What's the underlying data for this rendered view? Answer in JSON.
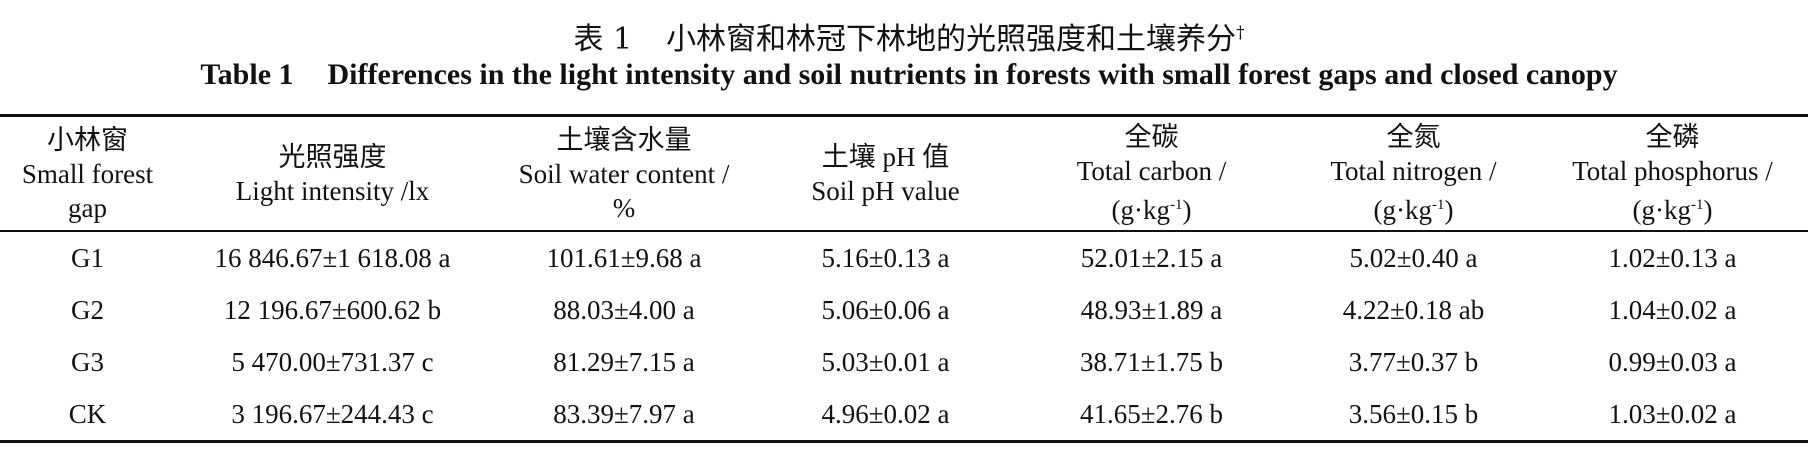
{
  "title_cn": {
    "label": "表 1",
    "text": "小林窗和林冠下林地的光照强度和土壤养分",
    "mark": "†"
  },
  "title_en": {
    "label": "Table 1",
    "text": "Differences in the light intensity and soil nutrients in forests with small forest gaps and closed canopy"
  },
  "table": {
    "header": [
      [
        "小林窗",
        "Small forest",
        "gap"
      ],
      [
        "光照强度",
        "Light intensity /lx"
      ],
      [
        "土壤含水量",
        "Soil water content /",
        "%"
      ],
      [
        "土壤 pH 值",
        "Soil pH value"
      ],
      [
        "全碳",
        "Total carbon /",
        {
          "base": "(g·kg",
          "sup": "-1",
          "tail": ")"
        }
      ],
      [
        "全氮",
        "Total nitrogen /",
        {
          "base": "(g·kg",
          "sup": "-1",
          "tail": ")"
        }
      ],
      [
        "全磷",
        "Total phosphorus /",
        {
          "base": "(g·kg",
          "sup": "-1",
          "tail": ")"
        }
      ]
    ],
    "rows": [
      [
        "G1",
        "16 846.67±1 618.08 a",
        "101.61±9.68 a",
        "5.16±0.13 a",
        "52.01±2.15 a",
        "5.02±0.40 a",
        "1.02±0.13 a"
      ],
      [
        "G2",
        "12 196.67±600.62 b",
        "88.03±4.00 a",
        "5.06±0.06 a",
        "48.93±1.89 a",
        "4.22±0.18 ab",
        "1.04±0.02 a"
      ],
      [
        "G3",
        "5 470.00±731.37 c",
        "81.29±7.15 a",
        "5.03±0.01 a",
        "38.71±1.75 b",
        "3.77±0.37 b",
        "0.99±0.03 a"
      ],
      [
        "CK",
        "3 196.67±244.43 c",
        "83.39±7.97 a",
        "4.96±0.02 a",
        "41.65±2.76 b",
        "3.56±0.15 b",
        "1.03±0.02 a"
      ]
    ]
  }
}
